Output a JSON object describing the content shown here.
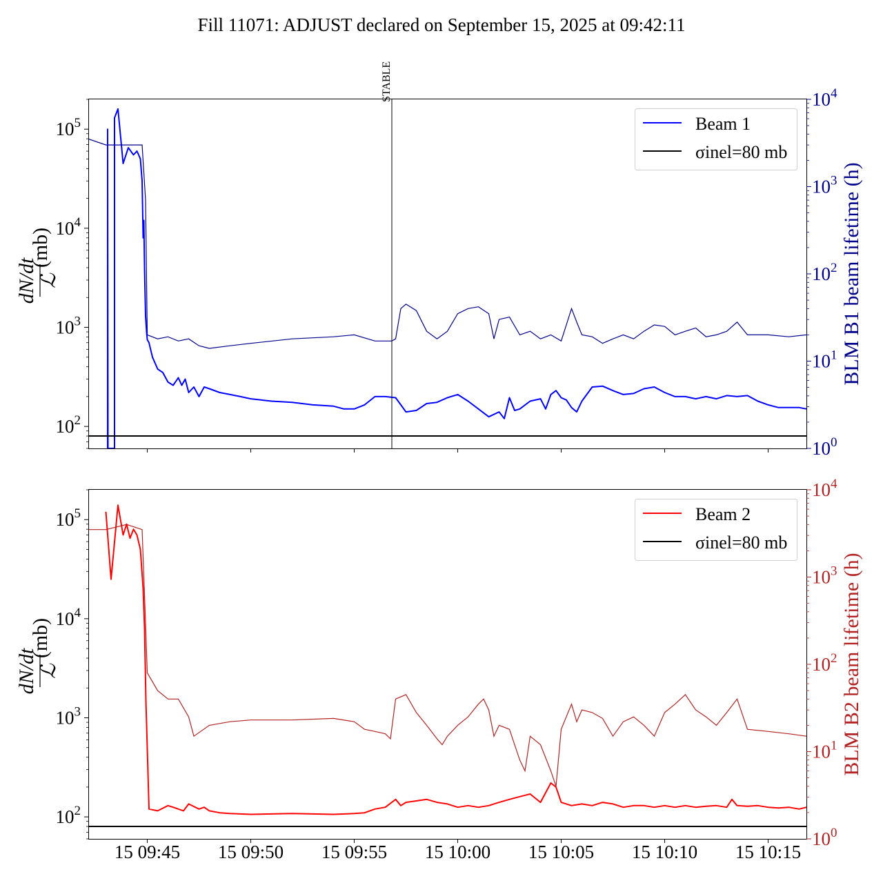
{
  "title": "Fill 11071: ADJUST declared on September 15, 2025 at 09:42:11",
  "colors": {
    "beam1": "#0000ff",
    "beam1_lifetime": "#00008b",
    "beam2": "#ff0000",
    "beam2_lifetime": "#b22222",
    "cross_section": "#000000"
  },
  "shared_x_ticks": [
    "15 09:45",
    "15 09:50",
    "15 09:55",
    "15 10:00",
    "15 10:05",
    "15 10:10",
    "15 10:15"
  ],
  "chart_data": [
    {
      "type": "line",
      "panel": "top",
      "x_unit": "minutes after 09:42:11 (time axis, Sep 15 2025)",
      "xlim": [
        "09:42:11",
        "10:16:51"
      ],
      "ylabel_left": "dN/dt / L (mb)",
      "ylabel_right": "BLM B1 beam lifetime (h)",
      "yscale_left": "log",
      "ylim_left": [
        60,
        200000
      ],
      "yscale_right": "log",
      "ylim_right": [
        1,
        10000
      ],
      "left_tick_labels": [
        "10^2",
        "10^3",
        "10^4",
        "10^5"
      ],
      "right_tick_labels": [
        "10^0",
        "10^1",
        "10^2",
        "10^3",
        "10^4"
      ],
      "vline": {
        "label": "STABLE",
        "x": "09:56:49"
      },
      "legend": {
        "placement": "top-right",
        "entries": [
          "Beam 1",
          "σinel=80 mb"
        ]
      },
      "series": [
        {
          "name": "Beam 1",
          "axis": "left",
          "x": [
            "09:43:05",
            "09:43:05",
            "09:43:06",
            "09:43:25",
            "09:43:25",
            "09:43:35",
            "09:43:50",
            "09:44:05",
            "09:44:20",
            "09:44:30",
            "09:44:35",
            "09:44:40",
            "09:44:45",
            "09:44:48",
            "09:44:50",
            "09:44:52",
            "09:44:55",
            "09:44:58",
            "09:45:00",
            "09:45:05",
            "09:45:15",
            "09:45:30",
            "09:45:45",
            "09:46:00",
            "09:46:15",
            "09:46:30",
            "09:46:40",
            "09:46:50",
            "09:47:00",
            "09:47:15",
            "09:47:30",
            "09:47:45",
            "09:48:00",
            "09:48:30",
            "09:49:00",
            "09:49:30",
            "09:50:00",
            "09:50:30",
            "09:51:00",
            "09:52:00",
            "09:53:00",
            "09:54:00",
            "09:54:30",
            "09:55:00",
            "09:55:30",
            "09:56:00",
            "09:56:30",
            "09:57:00",
            "09:57:30",
            "09:58:00",
            "09:58:30",
            "09:59:00",
            "09:59:30",
            "10:00:00",
            "10:00:30",
            "10:01:00",
            "10:01:30",
            "10:02:00",
            "10:02:15",
            "10:02:30",
            "10:02:45",
            "10:03:00",
            "10:03:30",
            "10:04:00",
            "10:04:15",
            "10:04:30",
            "10:04:45",
            "10:05:00",
            "10:05:15",
            "10:05:30",
            "10:05:45",
            "10:06:00",
            "10:06:30",
            "10:07:00",
            "10:07:30",
            "10:08:00",
            "10:08:30",
            "10:09:00",
            "10:09:30",
            "10:10:00",
            "10:10:30",
            "10:11:00",
            "10:11:30",
            "10:12:00",
            "10:12:30",
            "10:13:00",
            "10:13:30",
            "10:14:00",
            "10:14:30",
            "10:15:00",
            "10:15:30",
            "10:16:00",
            "10:16:30",
            "10:16:51"
          ],
          "values": [
            60,
            100000,
            60,
            60,
            130000,
            160000,
            45000,
            65000,
            55000,
            60000,
            55000,
            50000,
            30000,
            8000,
            12000,
            4000,
            1300,
            900,
            750,
            700,
            500,
            380,
            350,
            280,
            260,
            310,
            260,
            300,
            220,
            250,
            200,
            250,
            240,
            220,
            210,
            200,
            190,
            185,
            180,
            175,
            165,
            160,
            150,
            150,
            165,
            200,
            200,
            195,
            140,
            145,
            170,
            175,
            195,
            210,
            180,
            150,
            125,
            140,
            120,
            195,
            145,
            150,
            180,
            190,
            150,
            210,
            230,
            195,
            185,
            155,
            140,
            180,
            250,
            255,
            230,
            210,
            215,
            240,
            250,
            220,
            200,
            200,
            190,
            200,
            190,
            205,
            200,
            205,
            180,
            165,
            155,
            155,
            155,
            150
          ]
        },
        {
          "name": "B1 lifetime",
          "axis": "right",
          "x": [
            "09:42:11",
            "09:43:00",
            "09:44:00",
            "09:44:45",
            "09:44:55",
            "09:45:00",
            "09:45:30",
            "09:46:00",
            "09:46:30",
            "09:47:00",
            "09:47:30",
            "09:48:00",
            "09:49:00",
            "09:50:00",
            "09:52:00",
            "09:54:00",
            "09:55:00",
            "09:56:00",
            "09:56:49",
            "09:57:00",
            "09:57:15",
            "09:57:30",
            "09:58:00",
            "09:58:30",
            "09:59:00",
            "09:59:30",
            "10:00:00",
            "10:00:30",
            "10:01:00",
            "10:01:30",
            "10:01:45",
            "10:02:00",
            "10:02:30",
            "10:03:00",
            "10:03:30",
            "10:04:00",
            "10:04:30",
            "10:05:00",
            "10:05:30",
            "10:05:45",
            "10:06:00",
            "10:06:30",
            "10:07:00",
            "10:07:30",
            "10:08:00",
            "10:08:30",
            "10:09:00",
            "10:09:30",
            "10:10:00",
            "10:10:30",
            "10:11:00",
            "10:11:30",
            "10:12:00",
            "10:12:30",
            "10:13:00",
            "10:13:30",
            "10:14:00",
            "10:15:00",
            "10:16:00",
            "10:16:51"
          ],
          "values": [
            3500,
            3000,
            3000,
            3000,
            700,
            20,
            18,
            19,
            17,
            18,
            15,
            14,
            15,
            16,
            18,
            19,
            20,
            17,
            17,
            18,
            40,
            45,
            38,
            22,
            18,
            22,
            35,
            40,
            42,
            35,
            18,
            30,
            32,
            20,
            22,
            18,
            20,
            17,
            40,
            28,
            20,
            19,
            16,
            18,
            20,
            18,
            22,
            26,
            25,
            20,
            22,
            24,
            19,
            20,
            22,
            28,
            20,
            20,
            19,
            20
          ]
        },
        {
          "name": "σinel=80 mb",
          "axis": "left",
          "value": 80
        }
      ]
    },
    {
      "type": "line",
      "panel": "bottom",
      "x_unit": "minutes after 09:42:11 (time axis, Sep 15 2025)",
      "xlim": [
        "09:42:11",
        "10:16:51"
      ],
      "ylabel_left": "dN/dt / L (mb)",
      "ylabel_right": "BLM B2 beam lifetime (h)",
      "yscale_left": "log",
      "ylim_left": [
        60,
        200000
      ],
      "yscale_right": "log",
      "ylim_right": [
        1,
        10000
      ],
      "left_tick_labels": [
        "10^2",
        "10^3",
        "10^4",
        "10^5"
      ],
      "right_tick_labels": [
        "10^0",
        "10^1",
        "10^2",
        "10^3",
        "10^4"
      ],
      "legend": {
        "placement": "top-right",
        "entries": [
          "Beam 2",
          "σinel=80 mb"
        ]
      },
      "series": [
        {
          "name": "Beam 2",
          "axis": "left",
          "x": [
            "09:43:00",
            "09:43:15",
            "09:43:35",
            "09:43:50",
            "09:44:00",
            "09:44:10",
            "09:44:20",
            "09:44:30",
            "09:44:40",
            "09:44:48",
            "09:44:52",
            "09:44:56",
            "09:45:05",
            "09:45:30",
            "09:46:00",
            "09:46:15",
            "09:46:30",
            "09:46:45",
            "09:47:00",
            "09:47:30",
            "09:47:45",
            "09:48:00",
            "09:48:30",
            "09:49:00",
            "09:50:00",
            "09:51:00",
            "09:52:00",
            "09:53:00",
            "09:54:00",
            "09:55:00",
            "09:55:30",
            "09:56:00",
            "09:56:30",
            "09:57:00",
            "09:57:15",
            "09:57:30",
            "09:58:00",
            "09:58:30",
            "09:59:00",
            "09:59:30",
            "10:00:00",
            "10:00:30",
            "10:01:00",
            "10:01:30",
            "10:02:00",
            "10:02:30",
            "10:03:00",
            "10:03:30",
            "10:04:00",
            "10:04:30",
            "10:04:45",
            "10:05:00",
            "10:05:30",
            "10:06:00",
            "10:06:30",
            "10:07:00",
            "10:07:30",
            "10:08:00",
            "10:08:30",
            "10:09:00",
            "10:09:30",
            "10:10:00",
            "10:10:30",
            "10:11:00",
            "10:11:30",
            "10:12:00",
            "10:12:30",
            "10:13:00",
            "10:13:15",
            "10:13:30",
            "10:14:00",
            "10:14:30",
            "10:15:00",
            "10:15:30",
            "10:16:00",
            "10:16:30",
            "10:16:51"
          ],
          "values": [
            120000,
            25000,
            140000,
            70000,
            90000,
            65000,
            80000,
            70000,
            50000,
            20000,
            8000,
            1500,
            120,
            115,
            130,
            125,
            120,
            115,
            135,
            120,
            125,
            115,
            110,
            108,
            106,
            107,
            108,
            107,
            106,
            108,
            110,
            120,
            125,
            150,
            130,
            140,
            145,
            150,
            140,
            135,
            125,
            130,
            125,
            130,
            140,
            150,
            160,
            170,
            140,
            220,
            200,
            140,
            130,
            135,
            130,
            140,
            135,
            125,
            130,
            130,
            125,
            130,
            125,
            130,
            125,
            128,
            130,
            125,
            150,
            130,
            128,
            130,
            125,
            123,
            125,
            120,
            125
          ]
        },
        {
          "name": "B2 lifetime",
          "axis": "right",
          "x": [
            "09:42:11",
            "09:43:00",
            "09:44:00",
            "09:44:45",
            "09:44:55",
            "09:45:00",
            "09:45:30",
            "09:46:00",
            "09:46:30",
            "09:47:00",
            "09:47:15",
            "09:48:00",
            "09:49:00",
            "09:50:00",
            "09:52:00",
            "09:54:00",
            "09:55:00",
            "09:55:30",
            "09:56:00",
            "09:56:30",
            "09:56:45",
            "09:57:00",
            "09:57:30",
            "09:58:00",
            "09:58:30",
            "09:59:00",
            "09:59:15",
            "09:59:30",
            "10:00:00",
            "10:00:30",
            "10:01:00",
            "10:01:15",
            "10:01:30",
            "10:01:45",
            "10:02:00",
            "10:02:30",
            "10:03:00",
            "10:03:15",
            "10:03:30",
            "10:04:00",
            "10:04:30",
            "10:04:45",
            "10:05:00",
            "10:05:30",
            "10:05:45",
            "10:06:00",
            "10:06:30",
            "10:07:00",
            "10:07:30",
            "10:08:00",
            "10:08:30",
            "10:09:00",
            "10:09:30",
            "10:10:00",
            "10:10:30",
            "10:11:00",
            "10:11:30",
            "10:12:00",
            "10:12:30",
            "10:13:00",
            "10:13:30",
            "10:14:00",
            "10:15:00",
            "10:16:00",
            "10:16:51"
          ],
          "values": [
            3500,
            3500,
            4000,
            3500,
            300,
            80,
            50,
            40,
            40,
            25,
            15,
            20,
            22,
            23,
            23,
            24,
            22,
            18,
            17,
            16,
            14,
            40,
            45,
            28,
            20,
            14,
            12,
            15,
            20,
            25,
            35,
            40,
            30,
            15,
            20,
            18,
            8,
            6,
            15,
            12,
            6,
            4,
            18,
            35,
            22,
            30,
            28,
            24,
            15,
            22,
            25,
            20,
            15,
            28,
            35,
            45,
            30,
            25,
            20,
            28,
            40,
            18,
            17,
            16,
            15
          ]
        },
        {
          "name": "σinel=80 mb",
          "axis": "left",
          "value": 80
        }
      ]
    }
  ]
}
